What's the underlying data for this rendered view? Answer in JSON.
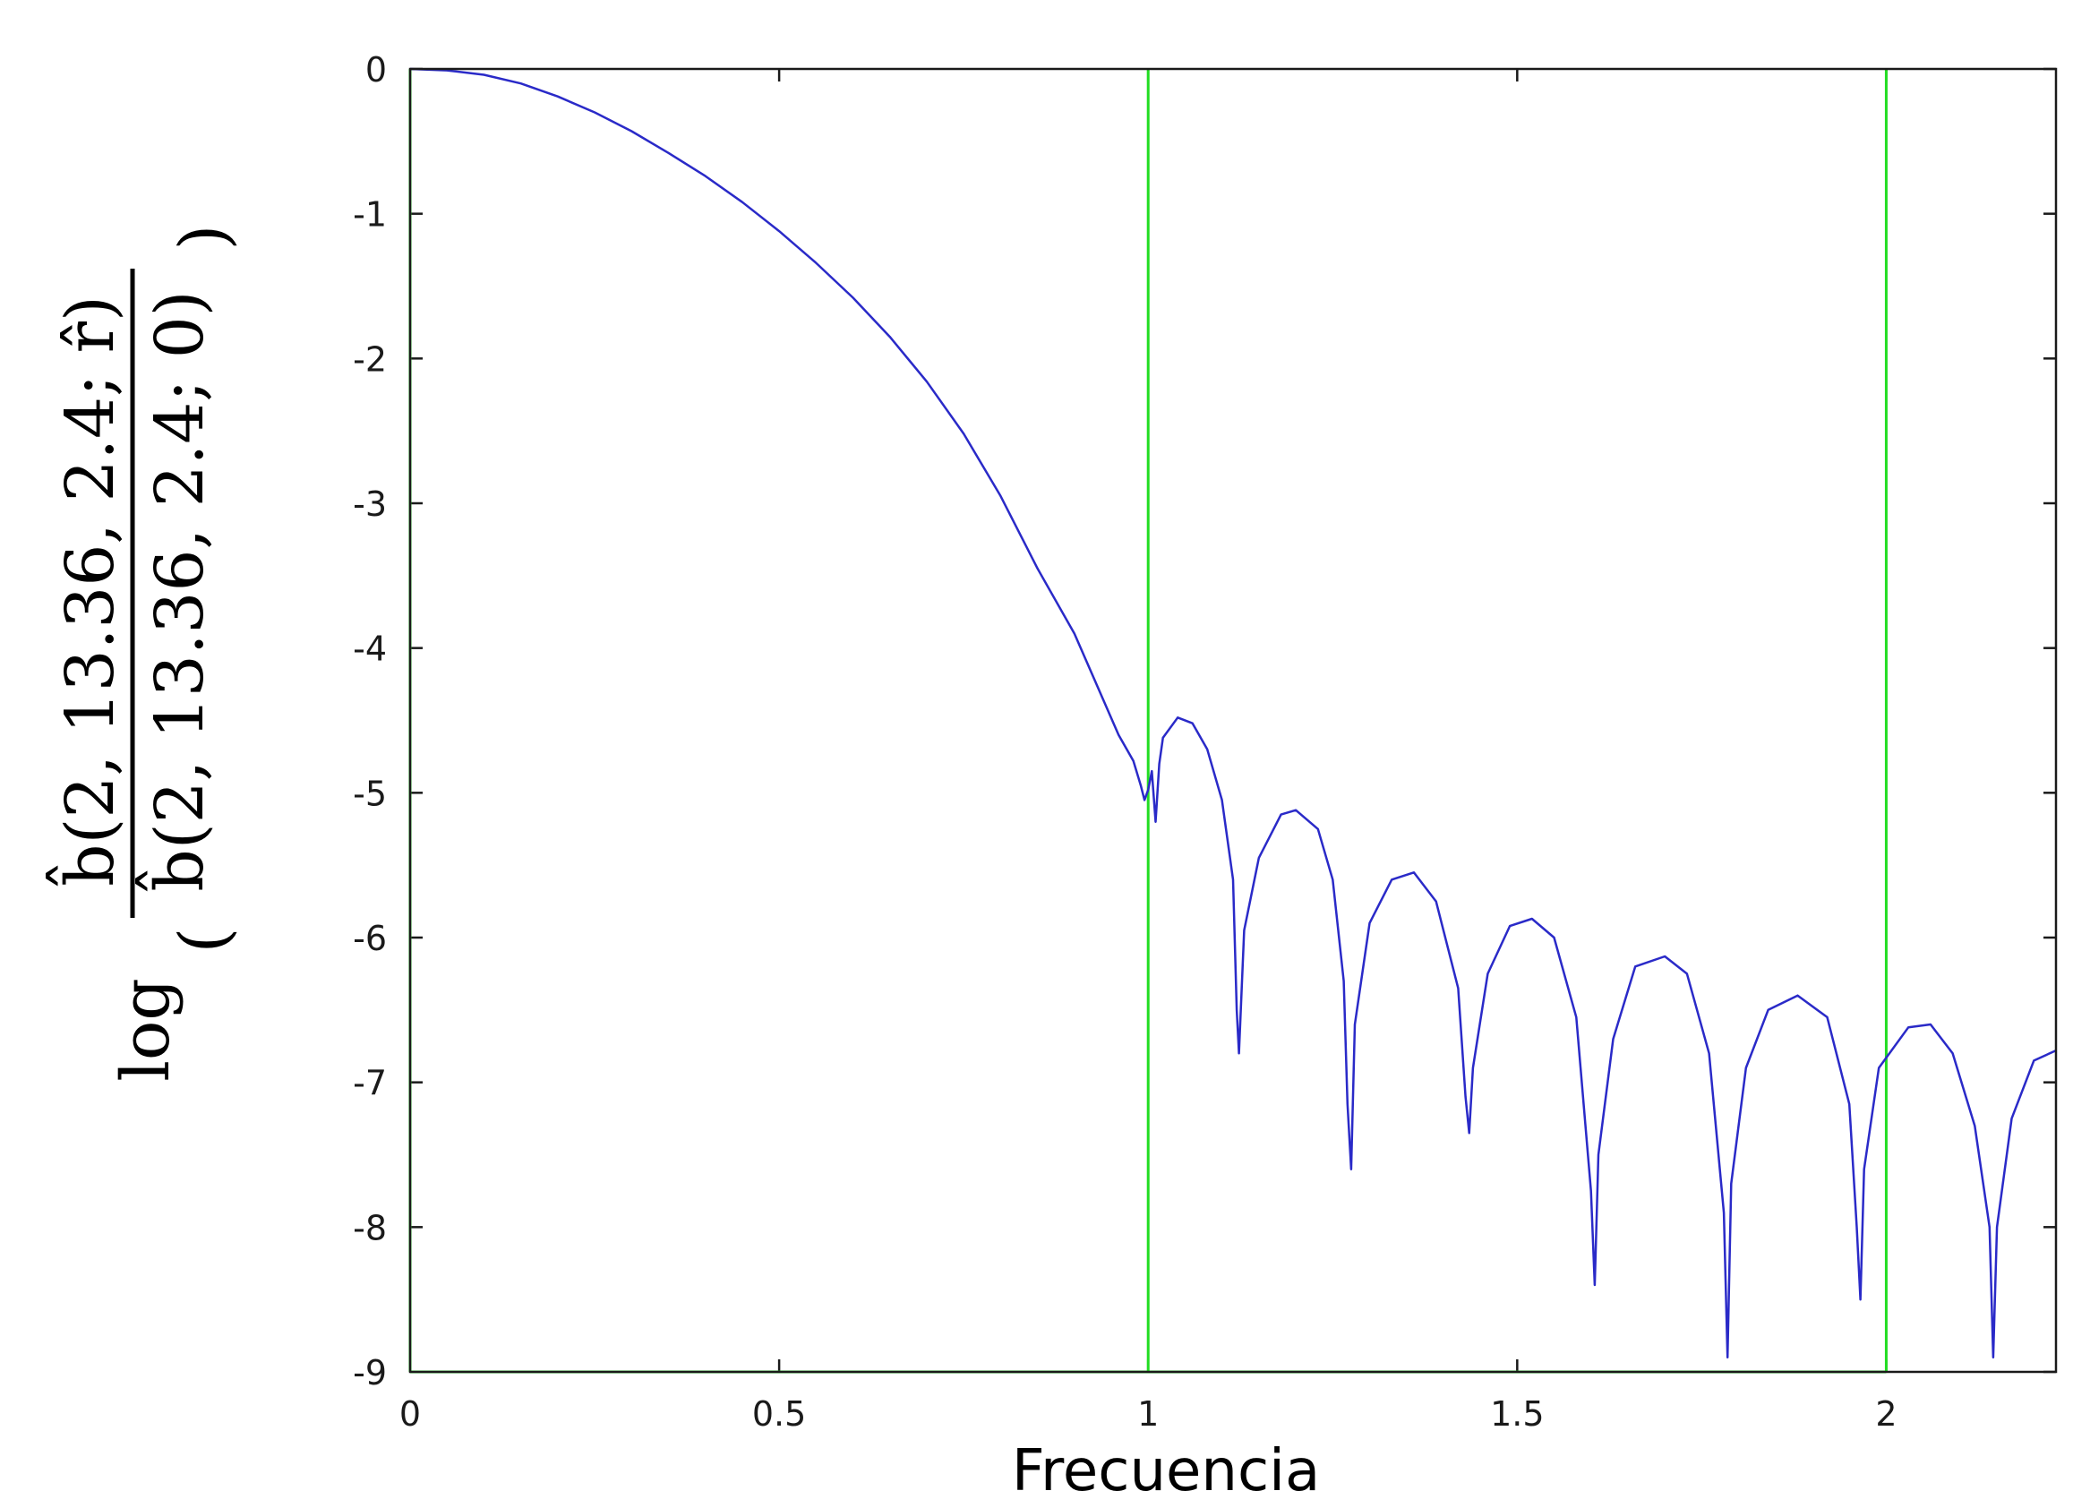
{
  "chart_data": {
    "type": "line",
    "title": "",
    "xlabel": "Frecuencia",
    "ylabel": "log ( b̂(2, 13.36, 2.4; r̂) / b̂(2, 13.36, 2.4; 0) )",
    "ylabel_parts": {
      "prefix": "log",
      "numerator": "b̂(2, 13.36, 2.4; r̂)",
      "denominator": "b̂(2, 13.36, 2.4; 0)"
    },
    "xlim": [
      0,
      2.23
    ],
    "ylim": [
      -9,
      0
    ],
    "xticks": [
      0,
      0.5,
      1,
      1.5,
      2
    ],
    "xtick_labels": [
      "0",
      "0.5",
      "1",
      "1.5",
      "2"
    ],
    "yticks": [
      0,
      -1,
      -2,
      -3,
      -4,
      -5,
      -6,
      -7,
      -8,
      -9
    ],
    "ytick_labels": [
      "0",
      "-1",
      "-2",
      "-3",
      "-4",
      "-5",
      "-6",
      "-7",
      "-8",
      "-9"
    ],
    "grid": false,
    "legend": "none",
    "series": [
      {
        "color": "#2a2ac8",
        "points": [
          [
            0.0,
            0.0
          ],
          [
            0.05,
            -0.01
          ],
          [
            0.1,
            -0.04
          ],
          [
            0.15,
            -0.1
          ],
          [
            0.2,
            -0.19
          ],
          [
            0.25,
            -0.3
          ],
          [
            0.3,
            -0.43
          ],
          [
            0.35,
            -0.58
          ],
          [
            0.4,
            -0.74
          ],
          [
            0.45,
            -0.92
          ],
          [
            0.5,
            -1.12
          ],
          [
            0.55,
            -1.34
          ],
          [
            0.6,
            -1.58
          ],
          [
            0.65,
            -1.85
          ],
          [
            0.7,
            -2.16
          ],
          [
            0.75,
            -2.52
          ],
          [
            0.8,
            -2.95
          ],
          [
            0.85,
            -3.45
          ],
          [
            0.9,
            -3.9
          ],
          [
            0.93,
            -4.25
          ],
          [
            0.96,
            -4.6
          ],
          [
            0.98,
            -4.78
          ],
          [
            0.99,
            -4.95
          ],
          [
            0.995,
            -5.05
          ],
          [
            1.0,
            -4.98
          ],
          [
            1.005,
            -4.85
          ],
          [
            1.01,
            -5.2
          ],
          [
            1.015,
            -4.8
          ],
          [
            1.02,
            -4.62
          ],
          [
            1.04,
            -4.48
          ],
          [
            1.06,
            -4.52
          ],
          [
            1.08,
            -4.7
          ],
          [
            1.1,
            -5.05
          ],
          [
            1.115,
            -5.6
          ],
          [
            1.12,
            -6.5
          ],
          [
            1.123,
            -6.8
          ],
          [
            1.13,
            -5.95
          ],
          [
            1.15,
            -5.45
          ],
          [
            1.18,
            -5.15
          ],
          [
            1.2,
            -5.12
          ],
          [
            1.23,
            -5.25
          ],
          [
            1.25,
            -5.6
          ],
          [
            1.265,
            -6.3
          ],
          [
            1.27,
            -7.15
          ],
          [
            1.275,
            -7.6
          ],
          [
            1.28,
            -6.6
          ],
          [
            1.3,
            -5.9
          ],
          [
            1.33,
            -5.6
          ],
          [
            1.36,
            -5.55
          ],
          [
            1.39,
            -5.75
          ],
          [
            1.42,
            -6.35
          ],
          [
            1.43,
            -7.1
          ],
          [
            1.435,
            -7.35
          ],
          [
            1.44,
            -6.9
          ],
          [
            1.46,
            -6.25
          ],
          [
            1.49,
            -5.92
          ],
          [
            1.52,
            -5.87
          ],
          [
            1.55,
            -6.0
          ],
          [
            1.58,
            -6.55
          ],
          [
            1.6,
            -7.75
          ],
          [
            1.605,
            -8.4
          ],
          [
            1.61,
            -7.5
          ],
          [
            1.63,
            -6.7
          ],
          [
            1.66,
            -6.2
          ],
          [
            1.7,
            -6.13
          ],
          [
            1.73,
            -6.25
          ],
          [
            1.76,
            -6.8
          ],
          [
            1.78,
            -7.9
          ],
          [
            1.785,
            -8.9
          ],
          [
            1.79,
            -7.7
          ],
          [
            1.81,
            -6.9
          ],
          [
            1.84,
            -6.5
          ],
          [
            1.88,
            -6.4
          ],
          [
            1.92,
            -6.55
          ],
          [
            1.95,
            -7.15
          ],
          [
            1.96,
            -8.0
          ],
          [
            1.965,
            -8.5
          ],
          [
            1.97,
            -7.6
          ],
          [
            1.99,
            -6.9
          ],
          [
            2.03,
            -6.62
          ],
          [
            2.06,
            -6.6
          ],
          [
            2.09,
            -6.8
          ],
          [
            2.12,
            -7.3
          ],
          [
            2.14,
            -8.0
          ],
          [
            2.145,
            -8.9
          ],
          [
            2.15,
            -8.0
          ],
          [
            2.17,
            -7.25
          ],
          [
            2.2,
            -6.85
          ],
          [
            2.23,
            -6.78
          ]
        ]
      }
    ],
    "reference_lines": {
      "color": "#22dd22",
      "vertical_x": [
        0,
        1,
        2
      ],
      "horizontal_y": [
        -9
      ]
    },
    "axes_box_color": "#1a1a1a"
  }
}
